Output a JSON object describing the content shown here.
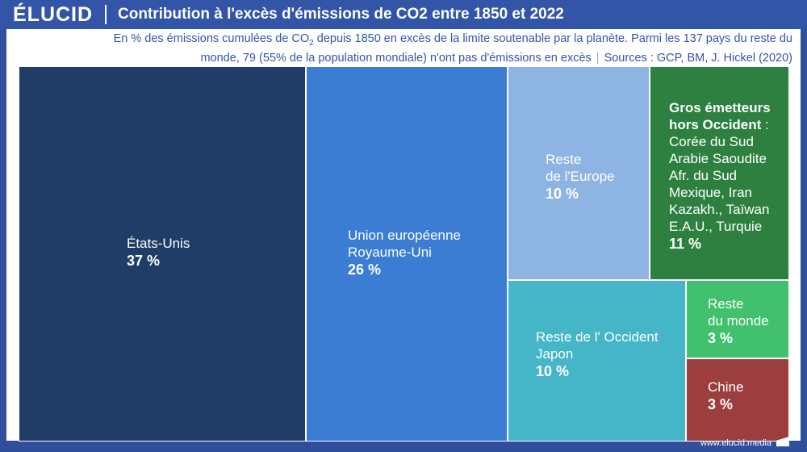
{
  "brand": "ÉLUCID",
  "title": "Contribution à l'excès d'émissions de CO2 entre 1850 et 2022",
  "subtitle": {
    "text_before": "En % des émissions cumulées de CO",
    "sub": "2",
    "text_after": " depuis 1850 en excès de la limite soutenable par la planète. Parmi les 137 pays du reste du monde, 79 (55% de la population mondiale) n'ont pas d'émissions en excès",
    "separator": "|",
    "sources": "Sources : GCP, BM, J. Hickel (2020)"
  },
  "footer_url": "www.elucid.media",
  "chart_data": {
    "type": "treemap",
    "unit": "%",
    "items": [
      {
        "label": "États-Unis",
        "value": 37,
        "value_label": "37 %",
        "color": "#1f3d66"
      },
      {
        "label": "Union européenne\nRoyaume-Uni",
        "value": 26,
        "value_label": "26 %",
        "color": "#3b7dd2"
      },
      {
        "label": "Reste\nde l'Europe",
        "value": 10,
        "value_label": "10 %",
        "color": "#8db4e2"
      },
      {
        "label_bold": "Gros émetteurs\nhors Occident",
        "label": " :\nCorée du Sud\nArabie Saoudite\nAfr. du Sud\nMexique, Iran\nKazakh., Taïwan\nE.A.U., Turquie",
        "value": 11,
        "value_label": "11 %",
        "color": "#2e8040"
      },
      {
        "label": "Reste de l' Occident\nJapon",
        "value": 10,
        "value_label": "10 %",
        "color": "#45b5c8"
      },
      {
        "label": "Reste\ndu monde",
        "value": 3,
        "value_label": "3 %",
        "color": "#41c06d"
      },
      {
        "label": "Chine",
        "value": 3,
        "value_label": "3 %",
        "color": "#9c3d3e"
      }
    ]
  }
}
